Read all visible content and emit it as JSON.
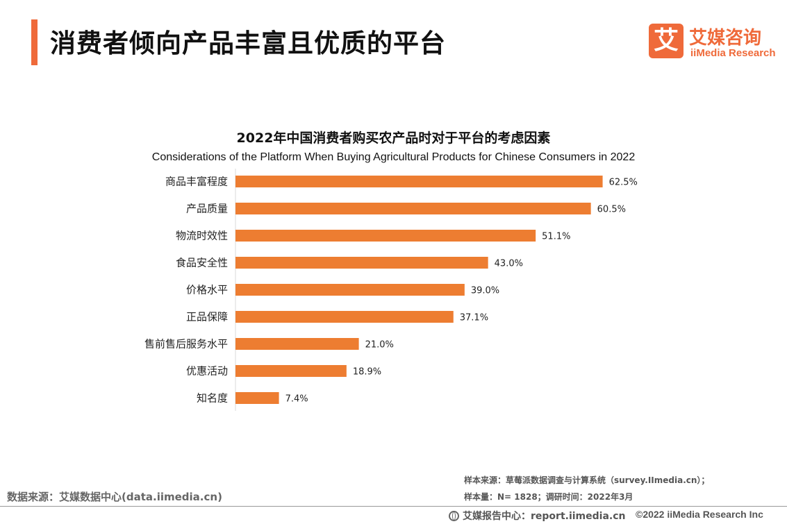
{
  "header": {
    "title": "消费者倾向产品丰富且优质的平台",
    "logo_mark": "艾",
    "logo_cn": "艾媒咨询",
    "logo_en": "iiMedia Research"
  },
  "chart_data": {
    "type": "bar",
    "orientation": "horizontal",
    "title": "2022年中国消费者购买农产品时对于平台的考虑因素",
    "subtitle": "Considerations of the Platform When Buying Agricultural Products for Chinese Consumers in 2022",
    "categories": [
      "商品丰富程度",
      "产品质量",
      "物流时效性",
      "食品安全性",
      "价格水平",
      "正品保障",
      "售前售后服务水平",
      "优惠活动",
      "知名度"
    ],
    "values": [
      62.5,
      60.5,
      51.1,
      43.0,
      39.0,
      37.1,
      21.0,
      18.9,
      7.4
    ],
    "value_labels": [
      "62.5%",
      "60.5%",
      "51.1%",
      "43.0%",
      "39.0%",
      "37.1%",
      "21.0%",
      "18.9%",
      "7.4%"
    ],
    "unit": "%",
    "xlim": [
      0,
      70
    ],
    "grid": false,
    "legend": "none",
    "bar_color": "#ed7d31"
  },
  "footer": {
    "data_source": "数据来源：艾媒数据中心(data.iimedia.cn)",
    "sample_source": "样本来源：草莓派数据调查与计算系统（survey.IImedia.cn）；",
    "sample_size": "样本量：N= 1828；调研时间：2022年3月",
    "report_center": "艾媒报告中心：report.iimedia.cn",
    "copyright": "©2022  iiMedia Research  Inc"
  },
  "colors": {
    "accent": "#ef6a3a"
  }
}
